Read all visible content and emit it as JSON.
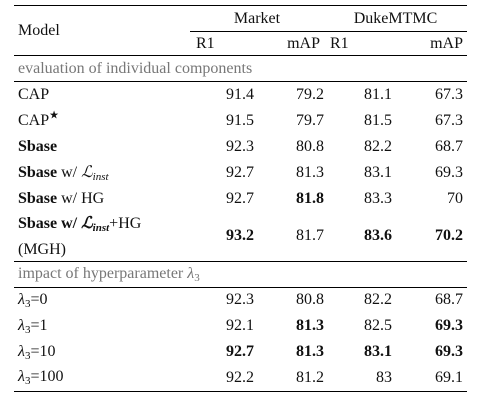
{
  "header": {
    "model": "Model",
    "groups": [
      "Market",
      "DukeMTMC"
    ],
    "metrics": [
      "R1",
      "mAP",
      "R1",
      "mAP"
    ]
  },
  "sections": [
    {
      "title": "evaluation of individual components",
      "rows": [
        {
          "model": "CAP",
          "values": [
            "91.4",
            "79.2",
            "81.1",
            "67.3"
          ],
          "bold": [
            false,
            false,
            false,
            false
          ]
        },
        {
          "model": "CAP*",
          "values": [
            "91.5",
            "79.7",
            "81.5",
            "67.3"
          ],
          "bold": [
            false,
            false,
            false,
            false
          ]
        },
        {
          "model": "Sbase",
          "values": [
            "92.3",
            "80.8",
            "82.2",
            "68.7"
          ],
          "bold": [
            false,
            false,
            false,
            false
          ]
        },
        {
          "model": "Sbase w/ ℒinst",
          "values": [
            "92.7",
            "81.3",
            "83.1",
            "69.3"
          ],
          "bold": [
            false,
            false,
            false,
            false
          ]
        },
        {
          "model": "Sbase w/ HG",
          "values": [
            "92.7",
            "81.8",
            "83.3",
            "70"
          ],
          "bold": [
            false,
            true,
            false,
            false
          ]
        },
        {
          "model": "Sbase w/ ℒinst+HG (MGH)",
          "values": [
            "93.2",
            "81.7",
            "83.6",
            "70.2"
          ],
          "bold": [
            true,
            false,
            true,
            true
          ]
        }
      ]
    },
    {
      "title": "impact of hyperparameter λ3",
      "rows": [
        {
          "model": "λ3=0",
          "values": [
            "92.3",
            "80.8",
            "82.2",
            "68.7"
          ],
          "bold": [
            false,
            false,
            false,
            false
          ]
        },
        {
          "model": "λ3=1",
          "values": [
            "92.1",
            "81.3",
            "82.5",
            "69.3"
          ],
          "bold": [
            false,
            true,
            false,
            true
          ]
        },
        {
          "model": "λ3=10",
          "values": [
            "92.7",
            "81.3",
            "83.1",
            "69.3"
          ],
          "bold": [
            true,
            true,
            true,
            true
          ]
        },
        {
          "model": "λ3=100",
          "values": [
            "92.2",
            "81.2",
            "83",
            "69.1"
          ],
          "bold": [
            false,
            false,
            false,
            false
          ]
        }
      ]
    }
  ]
}
